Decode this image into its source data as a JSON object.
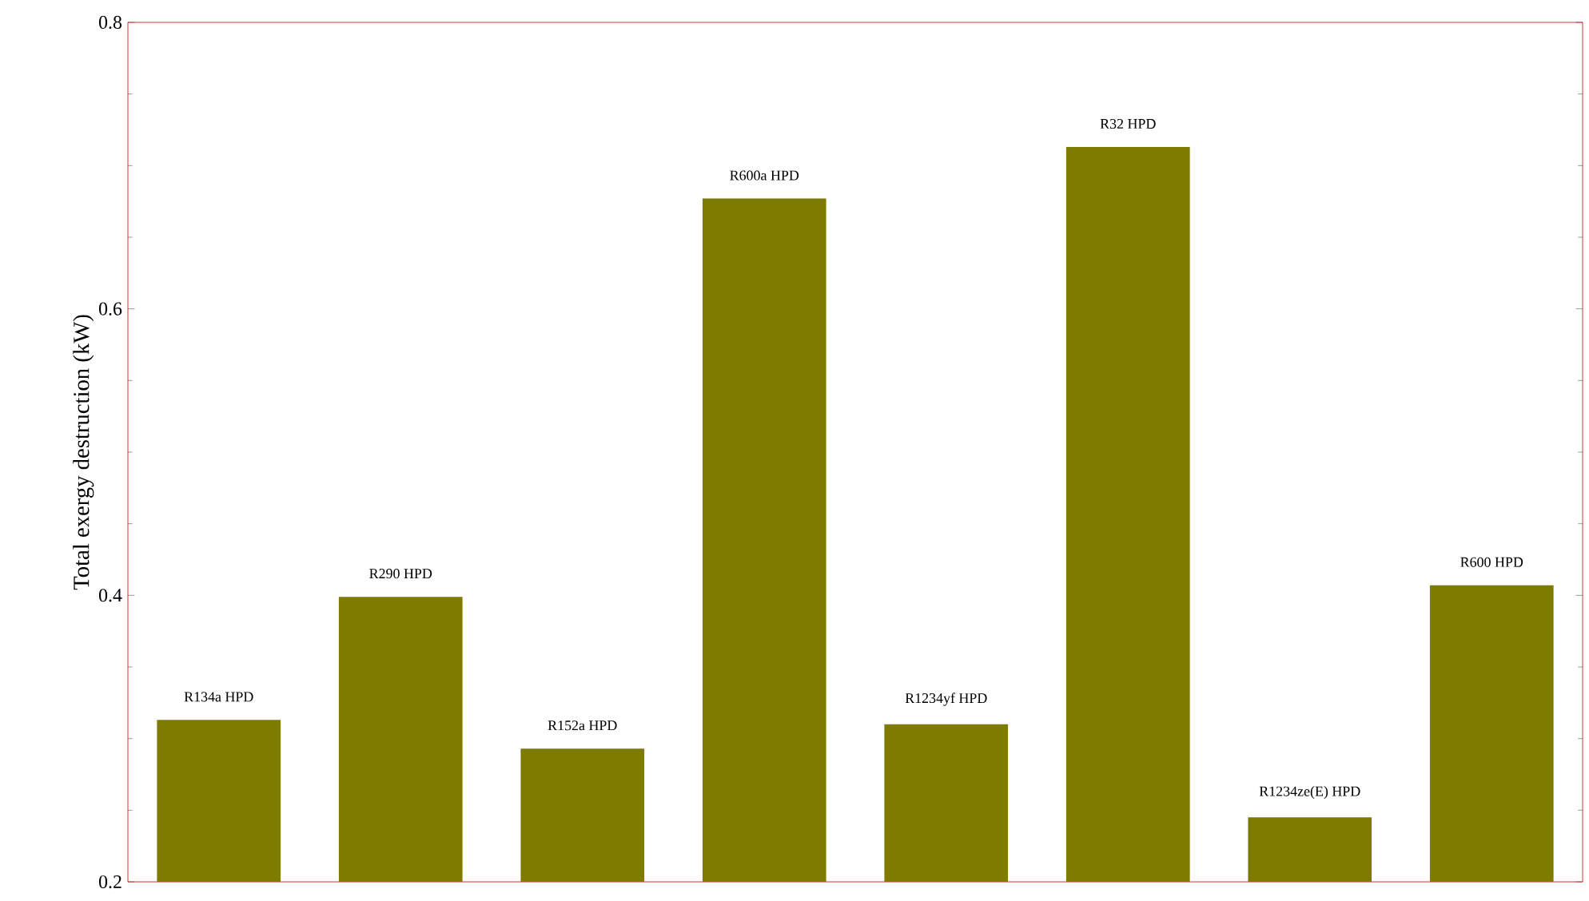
{
  "chart_data": {
    "type": "bar",
    "ylabel": "Total exergy destruction (kW)",
    "categories": [
      "R134a HPD",
      "R290 HPD",
      "R152a HPD",
      "R600a HPD",
      "R1234yf HPD",
      "R32 HPD",
      "R1234ze(E) HPD",
      "R600 HPD"
    ],
    "values": [
      0.313,
      0.399,
      0.293,
      0.677,
      0.31,
      0.713,
      0.245,
      0.407
    ],
    "color": "#7f7a00",
    "ylim": [
      0.2,
      0.8
    ],
    "yticks": [
      0.2,
      0.4,
      0.6,
      0.8
    ],
    "grid": false
  }
}
